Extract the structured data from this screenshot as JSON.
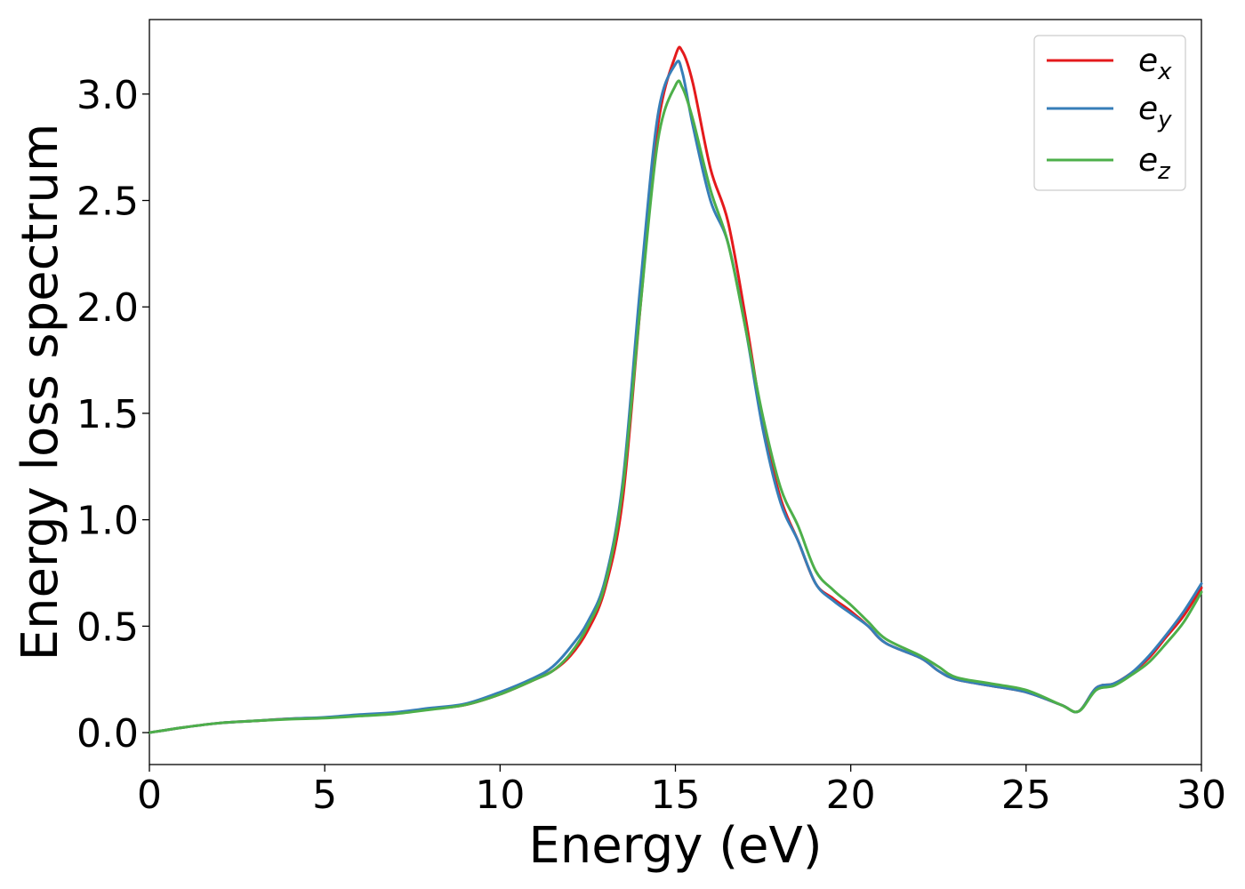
{
  "chart_data": {
    "type": "line",
    "title": "",
    "xlabel": "Energy (eV)",
    "ylabel": "Energy loss spectrum",
    "xlim": [
      0,
      30
    ],
    "ylim": [
      -0.15,
      3.35
    ],
    "xticks": [
      0,
      5,
      10,
      15,
      20,
      25,
      30
    ],
    "xtick_labels": [
      "0",
      "5",
      "10",
      "15",
      "20",
      "25",
      "30"
    ],
    "yticks": [
      0.0,
      0.5,
      1.0,
      1.5,
      2.0,
      2.5,
      3.0
    ],
    "ytick_labels": [
      "0.0",
      "0.5",
      "1.0",
      "1.5",
      "2.0",
      "2.5",
      "3.0"
    ],
    "grid": false,
    "legend_position": "top-right",
    "series": [
      {
        "name": "e",
        "subscript": "x",
        "color": "#e41a1c",
        "x": [
          0,
          1,
          2,
          3,
          4,
          5,
          6,
          7,
          8,
          9,
          10,
          11,
          11.5,
          12,
          12.5,
          13,
          13.5,
          14,
          14.5,
          15,
          15.2,
          15.5,
          16,
          16.5,
          17,
          17.5,
          18,
          18.5,
          19,
          19.5,
          20,
          20.5,
          21,
          22,
          22.5,
          23,
          24,
          25,
          26,
          26.5,
          27,
          27.5,
          28,
          28.5,
          29,
          29.5,
          30
        ],
        "y": [
          0,
          0.025,
          0.045,
          0.055,
          0.065,
          0.07,
          0.08,
          0.09,
          0.11,
          0.13,
          0.18,
          0.25,
          0.29,
          0.36,
          0.48,
          0.68,
          1.1,
          2.0,
          2.85,
          3.18,
          3.2,
          3.05,
          2.65,
          2.4,
          1.95,
          1.45,
          1.1,
          0.9,
          0.7,
          0.63,
          0.57,
          0.5,
          0.42,
          0.35,
          0.29,
          0.25,
          0.22,
          0.19,
          0.13,
          0.1,
          0.21,
          0.23,
          0.28,
          0.35,
          0.45,
          0.55,
          0.68
        ]
      },
      {
        "name": "e",
        "subscript": "y",
        "color": "#377eb8",
        "x": [
          0,
          1,
          2,
          3,
          4,
          5,
          6,
          7,
          8,
          9,
          10,
          11,
          11.5,
          12,
          12.5,
          13,
          13.5,
          14,
          14.5,
          15,
          15.2,
          15.5,
          16,
          16.5,
          17,
          17.5,
          18,
          18.5,
          19,
          19.5,
          20,
          20.5,
          21,
          22,
          22.5,
          23,
          24,
          25,
          26,
          26.5,
          27,
          27.5,
          28,
          28.5,
          29,
          29.5,
          30
        ],
        "y": [
          0,
          0.025,
          0.045,
          0.055,
          0.065,
          0.072,
          0.085,
          0.095,
          0.115,
          0.135,
          0.19,
          0.26,
          0.31,
          0.4,
          0.52,
          0.72,
          1.18,
          2.1,
          2.9,
          3.14,
          3.1,
          2.85,
          2.5,
          2.3,
          1.9,
          1.42,
          1.08,
          0.9,
          0.7,
          0.62,
          0.56,
          0.5,
          0.42,
          0.35,
          0.29,
          0.25,
          0.22,
          0.19,
          0.13,
          0.1,
          0.21,
          0.23,
          0.28,
          0.36,
          0.46,
          0.57,
          0.7
        ]
      },
      {
        "name": "e",
        "subscript": "z",
        "color": "#4daf4a",
        "x": [
          0,
          1,
          2,
          3,
          4,
          5,
          6,
          7,
          8,
          9,
          10,
          11,
          11.5,
          12,
          12.5,
          13,
          13.5,
          14,
          14.5,
          15,
          15.2,
          15.5,
          16,
          16.5,
          17,
          17.5,
          18,
          18.5,
          19,
          19.5,
          20,
          20.5,
          21,
          22,
          22.5,
          23,
          24,
          25,
          26,
          26.5,
          27,
          27.5,
          28,
          28.5,
          29,
          29.5,
          30
        ],
        "y": [
          0,
          0.025,
          0.045,
          0.055,
          0.063,
          0.068,
          0.078,
          0.088,
          0.108,
          0.13,
          0.18,
          0.25,
          0.29,
          0.37,
          0.5,
          0.7,
          1.15,
          2.0,
          2.78,
          3.04,
          3.03,
          2.88,
          2.55,
          2.3,
          1.9,
          1.48,
          1.15,
          0.97,
          0.76,
          0.67,
          0.6,
          0.52,
          0.44,
          0.36,
          0.31,
          0.26,
          0.23,
          0.2,
          0.13,
          0.1,
          0.2,
          0.22,
          0.27,
          0.33,
          0.42,
          0.52,
          0.66
        ]
      }
    ]
  }
}
